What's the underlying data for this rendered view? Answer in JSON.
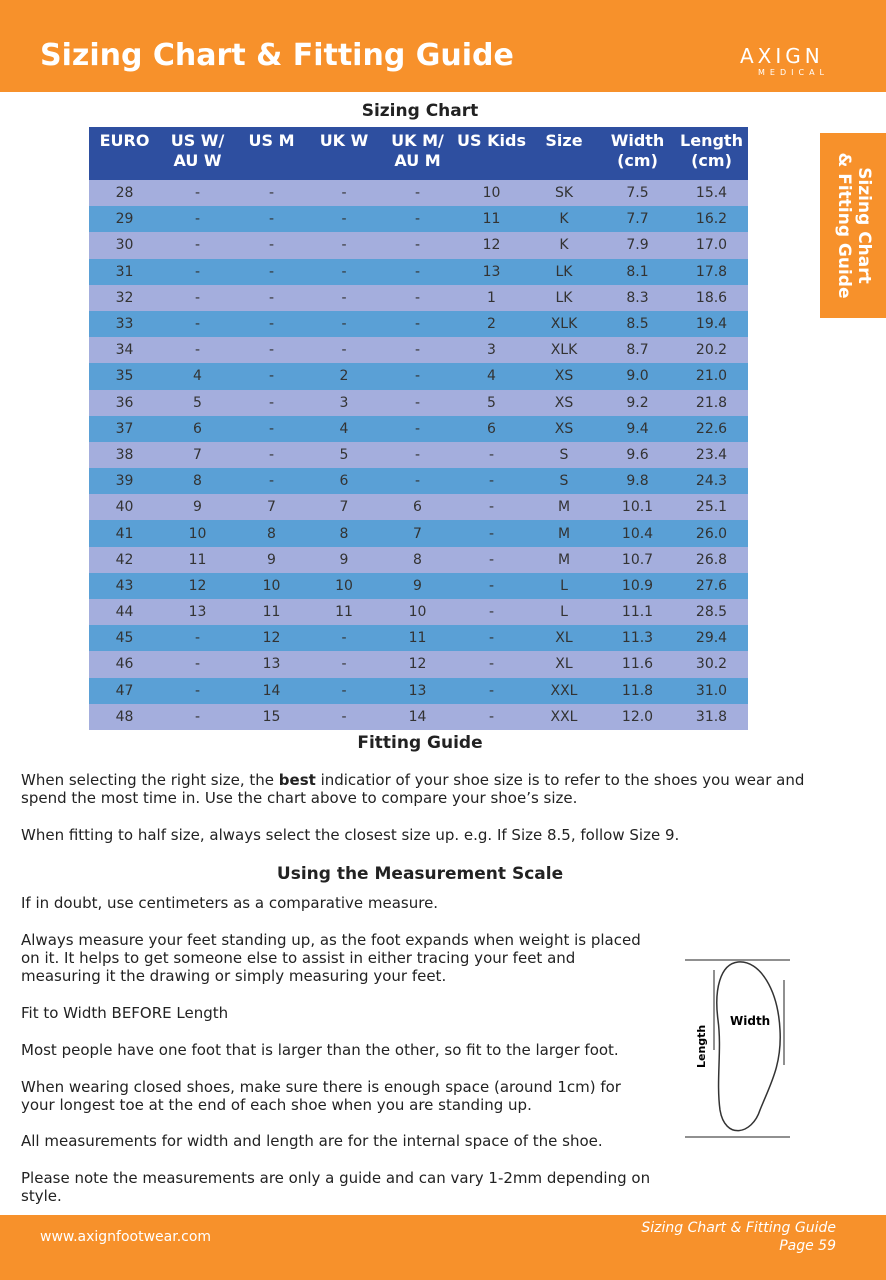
{
  "header": {
    "title": "Sizing Chart & Fitting Guide",
    "logo": {
      "brand": "AXIGN",
      "sub": "MEDICAL"
    }
  },
  "side_tab": {
    "lines": [
      "Sizing Chart",
      "& Fitting Guide"
    ]
  },
  "table": {
    "title": "Sizing Chart",
    "columns": [
      "EURO",
      "US W/ AU W",
      "US M",
      "UK W",
      "UK M/ AU M",
      "US Kids",
      "Size",
      "Width (cm)",
      "Length (cm)"
    ],
    "rows": [
      [
        "28",
        "-",
        "-",
        "-",
        "-",
        "10",
        "SK",
        "7.5",
        "15.4"
      ],
      [
        "29",
        "-",
        "-",
        "-",
        "-",
        "11",
        "K",
        "7.7",
        "16.2"
      ],
      [
        "30",
        "-",
        "-",
        "-",
        "-",
        "12",
        "K",
        "7.9",
        "17.0"
      ],
      [
        "31",
        "-",
        "-",
        "-",
        "-",
        "13",
        "LK",
        "8.1",
        "17.8"
      ],
      [
        "32",
        "-",
        "-",
        "-",
        "-",
        "1",
        "LK",
        "8.3",
        "18.6"
      ],
      [
        "33",
        "-",
        "-",
        "-",
        "-",
        "2",
        "XLK",
        "8.5",
        "19.4"
      ],
      [
        "34",
        "-",
        "-",
        "-",
        "-",
        "3",
        "XLK",
        "8.7",
        "20.2"
      ],
      [
        "35",
        "4",
        "-",
        "2",
        "-",
        "4",
        "XS",
        "9.0",
        "21.0"
      ],
      [
        "36",
        "5",
        "-",
        "3",
        "-",
        "5",
        "XS",
        "9.2",
        "21.8"
      ],
      [
        "37",
        "6",
        "-",
        "4",
        "-",
        "6",
        "XS",
        "9.4",
        "22.6"
      ],
      [
        "38",
        "7",
        "-",
        "5",
        "-",
        "-",
        "S",
        "9.6",
        "23.4"
      ],
      [
        "39",
        "8",
        "-",
        "6",
        "-",
        "-",
        "S",
        "9.8",
        "24.3"
      ],
      [
        "40",
        "9",
        "7",
        "7",
        "6",
        "-",
        "M",
        "10.1",
        "25.1"
      ],
      [
        "41",
        "10",
        "8",
        "8",
        "7",
        "-",
        "M",
        "10.4",
        "26.0"
      ],
      [
        "42",
        "11",
        "9",
        "9",
        "8",
        "-",
        "M",
        "10.7",
        "26.8"
      ],
      [
        "43",
        "12",
        "10",
        "10",
        "9",
        "-",
        "L",
        "10.9",
        "27.6"
      ],
      [
        "44",
        "13",
        "11",
        "11",
        "10",
        "-",
        "L",
        "11.1",
        "28.5"
      ],
      [
        "45",
        "-",
        "12",
        "-",
        "11",
        "-",
        "XL",
        "11.3",
        "29.4"
      ],
      [
        "46",
        "-",
        "13",
        "-",
        "12",
        "-",
        "XL",
        "11.6",
        "30.2"
      ],
      [
        "47",
        "-",
        "14",
        "-",
        "13",
        "-",
        "XXL",
        "11.8",
        "31.0"
      ],
      [
        "48",
        "-",
        "15",
        "-",
        "14",
        "-",
        "XXL",
        "12.0",
        "31.8"
      ]
    ]
  },
  "fitting": {
    "title": "Fitting Guide",
    "p1": {
      "before": "When selecting the right size, the ",
      "bold": "best",
      "after": " indicatior of your shoe size is to refer to the shoes you wear and spend the most time in. Use the chart above to compare your shoe’s size."
    },
    "p2": "When fitting to half size, always select the closest size up. e.g. If Size 8.5, follow Size 9."
  },
  "measurement": {
    "title": "Using the Measurement Scale",
    "paragraphs": [
      "If in doubt, use centimeters as a comparative measure.",
      "Always measure your feet standing up, as the foot expands when weight is placed on it. It helps to get someone else to assist in either tracing your feet and measuring it the drawing or simply measuring your feet.",
      "Fit to Width BEFORE Length",
      "Most people have one foot that is larger than the other, so fit to the larger foot.",
      "When wearing closed shoes, make sure there is enough space (around 1cm) for your longest toe at the end of each shoe when you are standing up.",
      "All measurements for width and length are for the internal space of the shoe.",
      "Please note the measurements are only a guide and can vary 1-2mm depending on style."
    ],
    "diagram": {
      "width": "Width",
      "length": "Length"
    }
  },
  "footer": {
    "url": "www.axignfootwear.com",
    "title": "Sizing Chart & Fitting Guide",
    "page": "Page 59"
  }
}
